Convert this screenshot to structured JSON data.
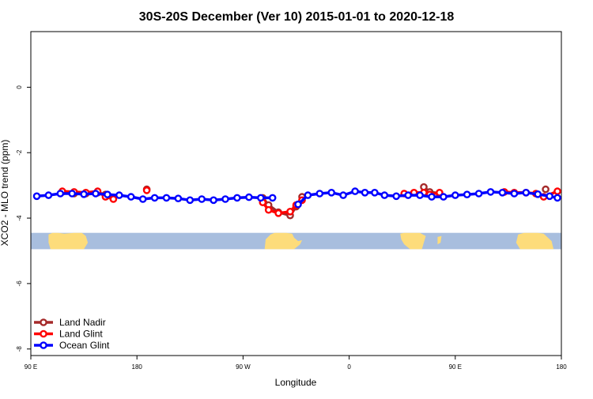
{
  "chart_data": {
    "type": "line",
    "title": "30S-20S December (Ver 10)   2015-01-01 to 2020-12-18",
    "xlabel": "Longitude",
    "ylabel": "XCO2 - MLO trend (ppm)",
    "xlim": [
      -90,
      180
    ],
    "ylim": [
      -8.2,
      1.7
    ],
    "x_ticks": [
      {
        "value": -90,
        "label": "90 E"
      },
      {
        "value": -36,
        "label": "180"
      },
      {
        "value": 18,
        "label": "90 W"
      },
      {
        "value": 72,
        "label": "0"
      },
      {
        "value": 126,
        "label": "90 E"
      },
      {
        "value": 180,
        "label": "180"
      }
    ],
    "y_ticks": [
      {
        "value": 0,
        "label": "0"
      },
      {
        "value": -2,
        "label": "-2"
      },
      {
        "value": -4,
        "label": "-4"
      },
      {
        "value": -6,
        "label": "-6"
      },
      {
        "value": -8,
        "label": "-8"
      }
    ],
    "land_band": {
      "y_top": -4.45,
      "y_bottom": -4.95,
      "ocean_color": "#a8bede",
      "land_color": "#fddc7b"
    },
    "legend_position": "bottom-left",
    "series": [
      {
        "name": "Land Nadir",
        "color": "#a52a2a",
        "segments": [
          [
            [
              -74,
              -3.2
            ],
            [
              -68,
              -3.25
            ],
            [
              -62,
              -3.25
            ],
            [
              -56,
              -3.22
            ],
            [
              -52,
              -3.28
            ],
            [
              -48,
              -3.4
            ]
          ],
          [
            [
              -31,
              -3.12
            ]
          ],
          [
            [
              28,
              -3.38
            ],
            [
              31,
              -3.6
            ],
            [
              36,
              -3.82
            ],
            [
              42,
              -3.92
            ],
            [
              45,
              -3.65
            ],
            [
              48,
              -3.35
            ]
          ],
          [
            [
              110,
              -3.05
            ],
            [
              113,
              -3.2
            ],
            [
              118,
              -3.25
            ]
          ],
          [
            [
              172,
              -3.12
            ]
          ]
        ]
      },
      {
        "name": "Land Glint",
        "color": "#ff0000",
        "segments": [
          [
            [
              -74,
              -3.18
            ],
            [
              -68,
              -3.2
            ],
            [
              -62,
              -3.22
            ],
            [
              -56,
              -3.18
            ],
            [
              -52,
              -3.35
            ],
            [
              -48,
              -3.42
            ]
          ],
          [
            [
              -31,
              -3.15
            ]
          ],
          [
            [
              28,
              -3.52
            ],
            [
              31,
              -3.75
            ],
            [
              36,
              -3.85
            ],
            [
              42,
              -3.8
            ],
            [
              45,
              -3.6
            ],
            [
              48,
              -3.45
            ]
          ],
          [
            [
              100,
              -3.25
            ],
            [
              105,
              -3.22
            ],
            [
              110,
              -3.22
            ],
            [
              113,
              -3.28
            ],
            [
              118,
              -3.22
            ]
          ],
          [
            [
              151,
              -3.2
            ],
            [
              156,
              -3.22
            ],
            [
              162,
              -3.22
            ],
            [
              167,
              -3.25
            ],
            [
              171,
              -3.35
            ],
            [
              178,
              -3.18
            ]
          ]
        ]
      },
      {
        "name": "Ocean Glint",
        "color": "#0000ff",
        "segments": [
          [
            [
              -87,
              -3.33
            ],
            [
              -81,
              -3.3
            ],
            [
              -75,
              -3.25
            ],
            [
              -69,
              -3.25
            ],
            [
              -63,
              -3.27
            ],
            [
              -57,
              -3.25
            ],
            [
              -51,
              -3.28
            ],
            [
              -45,
              -3.3
            ],
            [
              -39,
              -3.35
            ],
            [
              -33,
              -3.42
            ],
            [
              -27,
              -3.38
            ],
            [
              -21,
              -3.38
            ],
            [
              -15,
              -3.4
            ],
            [
              -9,
              -3.45
            ],
            [
              -3,
              -3.42
            ],
            [
              3,
              -3.45
            ],
            [
              9,
              -3.42
            ],
            [
              15,
              -3.38
            ],
            [
              21,
              -3.36
            ],
            [
              27,
              -3.38
            ],
            [
              33,
              -3.38
            ]
          ],
          [
            [
              46,
              -3.58
            ],
            [
              51,
              -3.3
            ],
            [
              57,
              -3.25
            ],
            [
              63,
              -3.22
            ],
            [
              69,
              -3.3
            ],
            [
              75,
              -3.18
            ],
            [
              80,
              -3.22
            ],
            [
              85,
              -3.22
            ],
            [
              90,
              -3.3
            ],
            [
              96,
              -3.33
            ],
            [
              102,
              -3.3
            ],
            [
              108,
              -3.3
            ],
            [
              114,
              -3.35
            ],
            [
              120,
              -3.35
            ],
            [
              126,
              -3.3
            ],
            [
              132,
              -3.28
            ],
            [
              138,
              -3.25
            ],
            [
              144,
              -3.2
            ],
            [
              150,
              -3.22
            ],
            [
              156,
              -3.25
            ],
            [
              162,
              -3.22
            ],
            [
              168,
              -3.27
            ],
            [
              174,
              -3.33
            ],
            [
              178,
              -3.38
            ]
          ]
        ]
      }
    ]
  }
}
